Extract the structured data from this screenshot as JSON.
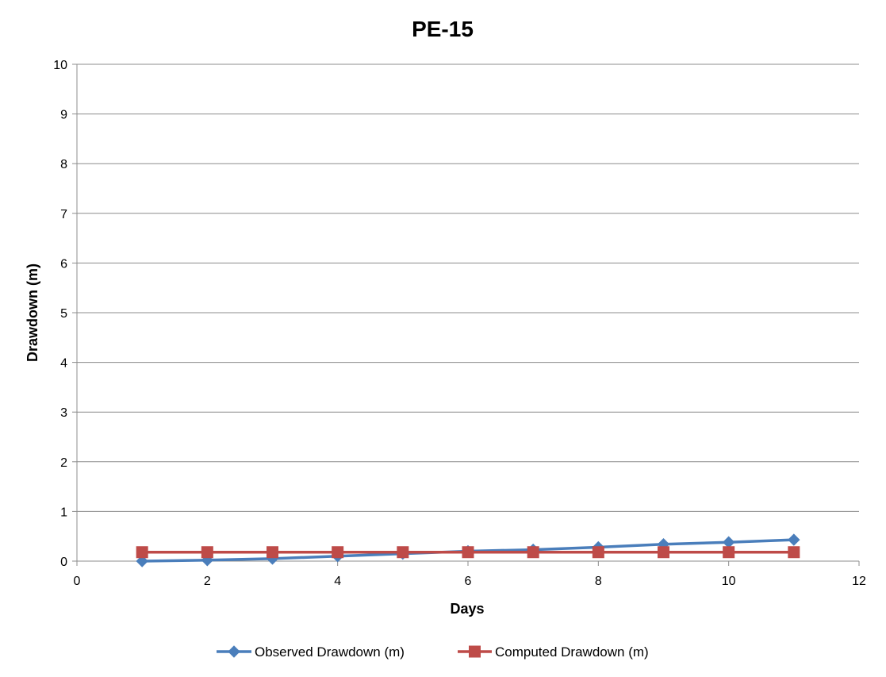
{
  "chart_data": {
    "type": "line",
    "title": "PE-15",
    "xlabel": "Days",
    "ylabel": "Drawdown (m)",
    "xlim": [
      0,
      12
    ],
    "ylim": [
      0,
      10
    ],
    "x_ticks": [
      "0",
      "2",
      "4",
      "6",
      "8",
      "10",
      "12"
    ],
    "y_ticks": [
      "0",
      "1",
      "2",
      "3",
      "4",
      "5",
      "6",
      "7",
      "8",
      "9",
      "10"
    ],
    "grid": "horizontal",
    "legend_position": "bottom",
    "x": [
      1,
      2,
      3,
      4,
      5,
      6,
      7,
      8,
      9,
      10,
      11
    ],
    "series": [
      {
        "name": "Observed Drawdown (m)",
        "color": "#4a7ebb",
        "marker": "diamond",
        "values": [
          0.0,
          0.02,
          0.05,
          0.1,
          0.15,
          0.2,
          0.23,
          0.28,
          0.34,
          0.38,
          0.43
        ]
      },
      {
        "name": "Computed Drawdown (m)",
        "color": "#be4b48",
        "marker": "square",
        "values": [
          0.18,
          0.18,
          0.18,
          0.18,
          0.18,
          0.18,
          0.18,
          0.18,
          0.18,
          0.18,
          0.18
        ]
      }
    ]
  }
}
